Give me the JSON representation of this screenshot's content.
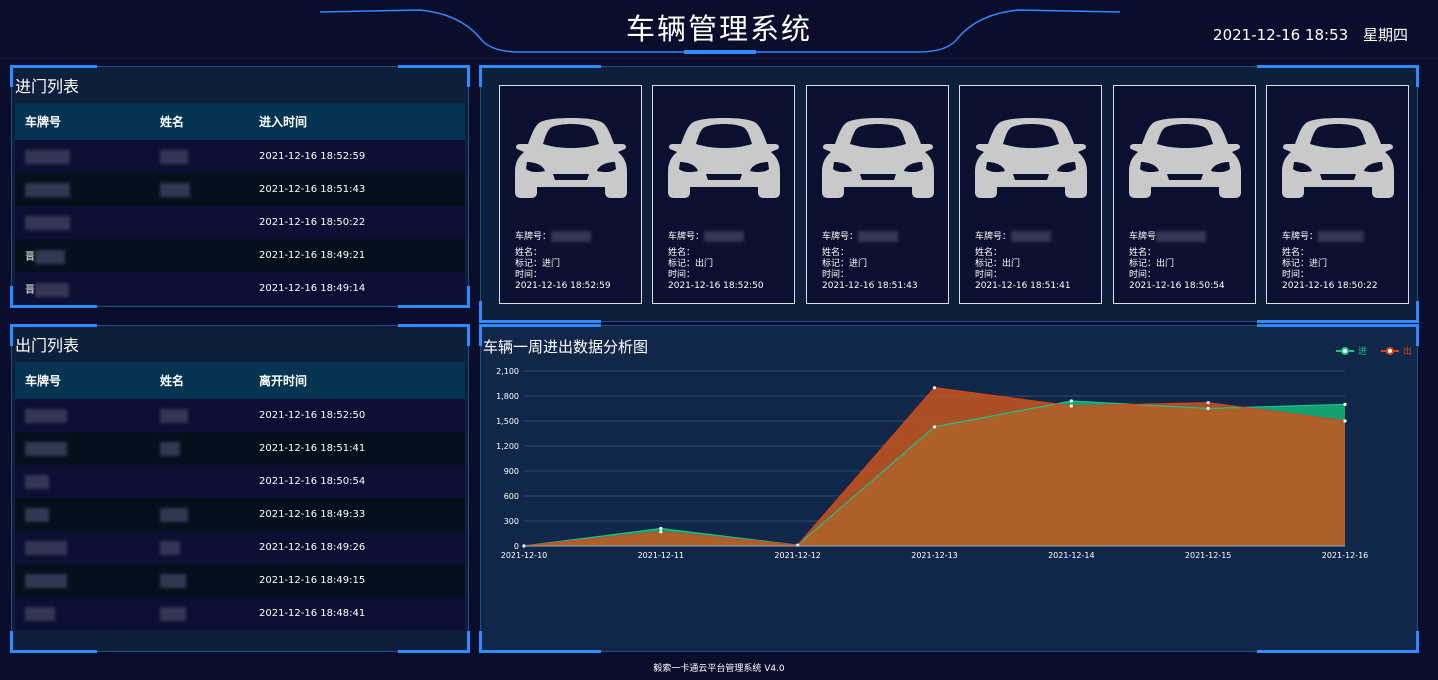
{
  "header": {
    "title": "车辆管理系统",
    "date_time": "2021-12-16 18:53",
    "weekday": "星期四"
  },
  "entry_list": {
    "title": "进门列表",
    "columns": [
      "车牌号",
      "姓名",
      "进入时间"
    ],
    "rows": [
      {
        "plate": "",
        "name": "",
        "time": "2021-12-16 18:52:59"
      },
      {
        "plate": "",
        "name": "",
        "time": "2021-12-16 18:51:43"
      },
      {
        "plate": "",
        "name": "",
        "time": "2021-12-16 18:50:22"
      },
      {
        "plate": "晋",
        "name": "",
        "time": "2021-12-16 18:49:21"
      },
      {
        "plate": "晋",
        "name": "",
        "time": "2021-12-16 18:49:14"
      }
    ]
  },
  "exit_list": {
    "title": "出门列表",
    "columns": [
      "车牌号",
      "姓名",
      "离开时间"
    ],
    "rows": [
      {
        "plate": "",
        "name": "",
        "time": "2021-12-16 18:52:50"
      },
      {
        "plate": "",
        "name": "",
        "time": "2021-12-16 18:51:41"
      },
      {
        "plate": "",
        "name": "",
        "time": "2021-12-16 18:50:54"
      },
      {
        "plate": "",
        "name": "",
        "time": "2021-12-16 18:49:33"
      },
      {
        "plate": "",
        "name": "",
        "time": "2021-12-16 18:49:26"
      },
      {
        "plate": "",
        "name": "",
        "time": "2021-12-16 18:49:15"
      },
      {
        "plate": "",
        "name": "",
        "time": "2021-12-16 18:48:41"
      }
    ]
  },
  "car_cards": [
    {
      "plate_label": "车牌号：",
      "name_label": "姓名：",
      "mark_label": "标记：",
      "mark": "进门",
      "time_label": "时间：",
      "time": "2021-12-16 18:52:59"
    },
    {
      "plate_label": "车牌号：",
      "name_label": "姓名：",
      "mark_label": "标记：",
      "mark": "出门",
      "time_label": "时间：",
      "time": "2021-12-16 18:52:50"
    },
    {
      "plate_label": "车牌号：",
      "name_label": "姓名：",
      "mark_label": "标记：",
      "mark": "进门",
      "time_label": "时间：",
      "time": "2021-12-16 18:51:43"
    },
    {
      "plate_label": "车牌号：",
      "name_label": "姓名：",
      "mark_label": "标记：",
      "mark": "出门",
      "time_label": "时间：",
      "time": "2021-12-16 18:51:41"
    },
    {
      "plate_label": "车牌号",
      "name_label": "姓名：",
      "mark_label": "标记：",
      "mark": "出门",
      "time_label": "时间：",
      "time": "2021-12-16 18:50:54"
    },
    {
      "plate_label": "车牌号：",
      "name_label": "姓名：",
      "mark_label": "标记：",
      "mark": "进门",
      "time_label": "时间：",
      "time": "2021-12-16 18:50:22"
    }
  ],
  "chart_data": {
    "type": "area",
    "title": "车辆一周进出数据分析图",
    "categories": [
      "2021-12-10",
      "2021-12-11",
      "2021-12-12",
      "2021-12-13",
      "2021-12-14",
      "2021-12-15",
      "2021-12-16"
    ],
    "series": [
      {
        "name": "进",
        "color": "#1ec28a",
        "values": [
          0,
          210,
          10,
          1430,
          1740,
          1650,
          1700
        ]
      },
      {
        "name": "出",
        "color": "#d3451a",
        "values": [
          0,
          170,
          10,
          1900,
          1680,
          1720,
          1500
        ]
      }
    ],
    "ylim": [
      0,
      2100
    ],
    "yticks": [
      "0",
      "300",
      "600",
      "900",
      "1,200",
      "1,500",
      "1,800",
      "2,100"
    ],
    "legend": "top-right",
    "grid": true
  },
  "footer": {
    "text": "毅索一卡通云平台管理系统 V4.0"
  },
  "colors": {
    "background": "#0a0e2c",
    "panel": "#0e1f3c",
    "accent": "#2f8cff",
    "table_header": "#053352"
  },
  "icons": {
    "car": "car-icon"
  }
}
